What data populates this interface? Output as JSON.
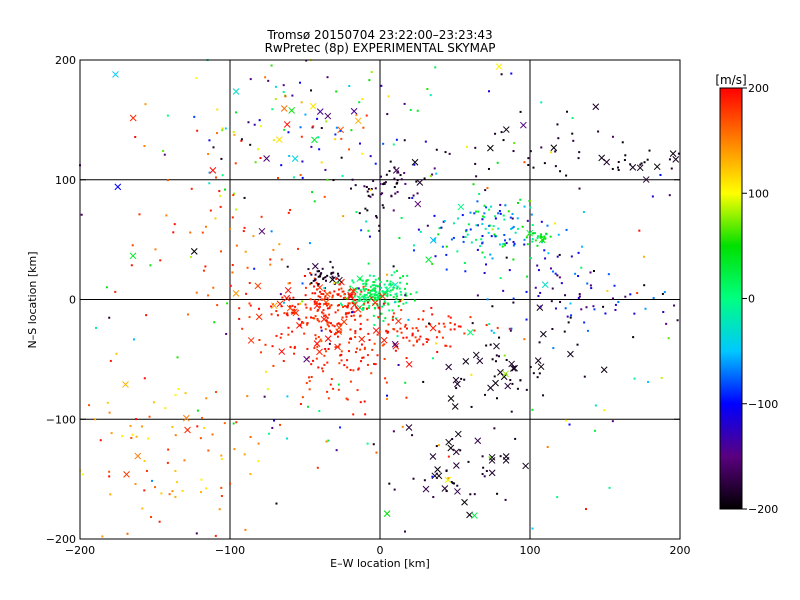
{
  "chart_data": {
    "type": "scatter",
    "title": "Tromsø 20150704 23:22:00–23:23:43",
    "subtitle": "RwPretec (8p) EXPERIMENTAL SKYMAP",
    "xlabel": "E–W location [km]",
    "ylabel": "N–S location [km]",
    "xlim": [
      -200,
      200
    ],
    "ylim": [
      -200,
      200
    ],
    "grid": true,
    "x_ticks": [
      -200,
      -100,
      0,
      100,
      200
    ],
    "y_ticks": [
      -200,
      -100,
      0,
      100,
      200
    ],
    "x_tick_labels": [
      "−200",
      "−100",
      "0",
      "100",
      "200"
    ],
    "y_tick_labels": [
      "−200",
      "−100",
      "0",
      "100",
      "200"
    ],
    "markers": [
      "dot",
      "cross"
    ],
    "colorbar": {
      "label": "[m/s]",
      "range": [
        -200,
        200
      ],
      "ticks": [
        200,
        100,
        0,
        -100,
        -200
      ],
      "tick_labels": [
        "200",
        "100",
        "0",
        "−100",
        "−200"
      ],
      "colormap": [
        "#000000",
        "#5a0080",
        "#0000ff",
        "#00c8ff",
        "#00ff80",
        "#00e000",
        "#ffff00",
        "#ff8000",
        "#ff0000"
      ]
    },
    "clusters": [
      {
        "x": 0,
        "y": 5,
        "sx": 12,
        "sy": 10,
        "n": 120,
        "v": [
          -10,
          40
        ],
        "cross": 0.05
      },
      {
        "x": -5,
        "y": 3,
        "sx": 6,
        "sy": 5,
        "n": 60,
        "v": [
          0,
          30
        ],
        "cross": 0.05
      },
      {
        "x": -35,
        "y": -5,
        "sx": 15,
        "sy": 10,
        "n": 130,
        "v": [
          170,
          200
        ],
        "cross": 0.12
      },
      {
        "x": -30,
        "y": -40,
        "sx": 20,
        "sy": 25,
        "n": 120,
        "v": [
          170,
          200
        ],
        "cross": 0.04
      },
      {
        "x": 20,
        "y": -25,
        "sx": 25,
        "sy": 10,
        "n": 90,
        "v": [
          175,
          200
        ],
        "cross": 0.04
      },
      {
        "x": -55,
        "y": -15,
        "sx": 20,
        "sy": 20,
        "n": 60,
        "v": [
          175,
          200
        ],
        "cross": 0.15
      },
      {
        "x": -38,
        "y": 20,
        "sx": 6,
        "sy": 5,
        "n": 35,
        "v": [
          -200,
          -170
        ],
        "cross": 0.12
      },
      {
        "x": 5,
        "y": 95,
        "sx": 12,
        "sy": 12,
        "n": 60,
        "v": [
          -200,
          -150
        ],
        "cross": 0.05
      },
      {
        "x": 75,
        "y": 55,
        "sx": 22,
        "sy": 15,
        "n": 130,
        "v": [
          -130,
          60
        ],
        "cross": 0.04
      },
      {
        "x": 105,
        "y": 52,
        "sx": 5,
        "sy": 3,
        "n": 20,
        "v": [
          20,
          60
        ],
        "cross": 0.1
      },
      {
        "x": 170,
        "y": 115,
        "sx": 20,
        "sy": 6,
        "n": 30,
        "v": [
          -200,
          -180
        ],
        "cross": 0.3
      },
      {
        "x": 85,
        "y": -65,
        "sx": 25,
        "sy": 20,
        "n": 60,
        "v": [
          -200,
          -180
        ],
        "cross": 0.45
      },
      {
        "x": 50,
        "y": -140,
        "sx": 18,
        "sy": 15,
        "n": 50,
        "v": [
          -200,
          -170
        ],
        "cross": 0.5
      },
      {
        "x": -60,
        "y": 140,
        "sx": 45,
        "sy": 30,
        "n": 110,
        "v": [
          -200,
          200
        ],
        "cross": 0.12
      },
      {
        "x": -140,
        "y": -130,
        "sx": 40,
        "sy": 40,
        "n": 90,
        "v": [
          100,
          200
        ],
        "cross": 0.08
      },
      {
        "x": -100,
        "y": 50,
        "sx": 30,
        "sy": 40,
        "n": 50,
        "v": [
          140,
          200
        ],
        "cross": 0.05
      },
      {
        "x": 140,
        "y": 0,
        "sx": 40,
        "sy": 15,
        "n": 70,
        "v": [
          -200,
          -60
        ],
        "cross": 0.02
      },
      {
        "x": 100,
        "y": 130,
        "sx": 35,
        "sy": 20,
        "n": 30,
        "v": [
          -200,
          -170
        ],
        "cross": 0.05
      },
      {
        "x": 0,
        "y": 0,
        "sx": 110,
        "sy": 110,
        "n": 260,
        "v": [
          -200,
          200
        ],
        "cross": 0.05
      }
    ]
  }
}
